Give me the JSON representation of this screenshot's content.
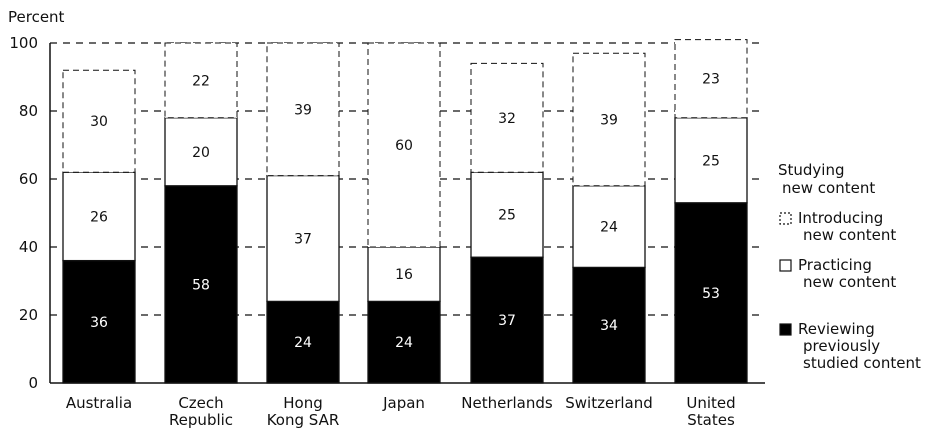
{
  "chart_data": {
    "type": "bar",
    "stacked": true,
    "ylabel": "Percent",
    "ylim": [
      0,
      100
    ],
    "yticks": [
      0,
      20,
      40,
      60,
      80,
      100
    ],
    "grid": "dashed horizontal",
    "categories": [
      [
        "Australia"
      ],
      [
        "Czech",
        "Republic"
      ],
      [
        "Hong",
        "Kong SAR"
      ],
      [
        "Japan"
      ],
      [
        "Netherlands"
      ],
      [
        "Switzerland"
      ],
      [
        "United",
        "States"
      ]
    ],
    "series": [
      {
        "name": "Reviewing previously studied content",
        "values": [
          36,
          58,
          24,
          24,
          37,
          34,
          53
        ],
        "color": "#000000",
        "style": "solid"
      },
      {
        "name": "Practicing new content",
        "values": [
          26,
          20,
          37,
          16,
          25,
          24,
          25
        ],
        "color": "#ffffff",
        "style": "solid"
      },
      {
        "name": "Introducing new content",
        "values": [
          30,
          22,
          39,
          60,
          32,
          39,
          23
        ],
        "color": "#ffffff",
        "style": "dashed"
      }
    ],
    "legend": {
      "placement": "right",
      "heading": [
        "Studying",
        "new content"
      ],
      "entries": [
        {
          "series": 2,
          "lines": [
            "Introducing",
            "new content"
          ]
        },
        {
          "series": 1,
          "lines": [
            "Practicing",
            "new content"
          ]
        },
        {
          "series": 0,
          "lines": [
            "Reviewing",
            "previously",
            "studied content"
          ]
        }
      ]
    }
  }
}
